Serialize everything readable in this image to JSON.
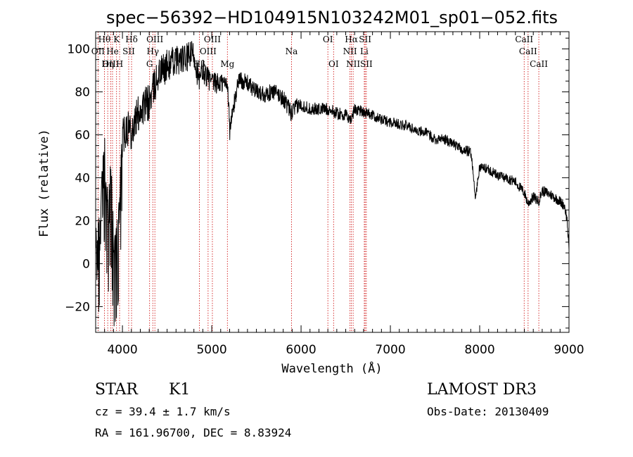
{
  "chart_data": {
    "type": "line",
    "title": "spec−56392−HD104915N103242M01_sp01−052.fits",
    "xlabel": "Wavelength (Å)",
    "ylabel": "Flux (relative)",
    "xlim": [
      3700,
      9000
    ],
    "ylim": [
      -32,
      108
    ],
    "x_ticks": [
      4000,
      5000,
      6000,
      7000,
      8000,
      9000
    ],
    "y_ticks": [
      -20,
      0,
      20,
      40,
      60,
      80,
      100
    ],
    "y_tick_labels": [
      "−20",
      "0",
      "20",
      "40",
      "60",
      "80",
      "100"
    ],
    "x_tick_labels": [
      "4000",
      "5000",
      "6000",
      "7000",
      "8000",
      "9000"
    ],
    "spectrum_anchors": {
      "x": [
        3720,
        3760,
        3800,
        3840,
        3870,
        3900,
        3935,
        3970,
        4000,
        4050,
        4100,
        4200,
        4300,
        4400,
        4500,
        4600,
        4700,
        4800,
        4860,
        4900,
        5000,
        5100,
        5180,
        5200,
        5300,
        5400,
        5500,
        5600,
        5700,
        5800,
        5890,
        5950,
        6000,
        6100,
        6200,
        6300,
        6400,
        6500,
        6560,
        6600,
        6700,
        6800,
        6900,
        7000,
        7100,
        7200,
        7300,
        7400,
        7500,
        7600,
        7700,
        7800,
        7900,
        7920,
        7950,
        8000,
        8100,
        8200,
        8300,
        8400,
        8500,
        8540,
        8600,
        8660,
        8700,
        8800,
        8900,
        8950,
        8980,
        9000
      ],
      "y": [
        5,
        25,
        48,
        20,
        40,
        5,
        10,
        25,
        60,
        65,
        62,
        72,
        75,
        88,
        92,
        95,
        95,
        98,
        84,
        90,
        84,
        84,
        84,
        62,
        86,
        84,
        80,
        79,
        80,
        77,
        70,
        73,
        74,
        72,
        72,
        72,
        70,
        69,
        67,
        72,
        71,
        69,
        67,
        66,
        65,
        64,
        62,
        61,
        58,
        58,
        56,
        53,
        52,
        46,
        30,
        45,
        44,
        41,
        40,
        38,
        33,
        28,
        31,
        29,
        34,
        32,
        29,
        27,
        20,
        5
      ],
      "noise_amplitude": [
        14,
        14,
        14,
        14,
        14,
        14,
        14,
        14,
        10,
        10,
        9,
        9,
        9,
        8,
        8,
        7,
        7,
        7,
        6,
        6,
        5,
        5,
        5,
        5,
        4,
        4,
        4,
        4,
        4,
        4,
        4,
        4,
        3,
        3,
        3,
        3,
        3,
        3,
        3,
        3,
        3,
        2.5,
        2.5,
        2.5,
        2.5,
        2.5,
        2.5,
        2.5,
        2.5,
        2.5,
        2.5,
        2.5,
        2.5,
        2.5,
        2.5,
        2.5,
        2.5,
        2.5,
        2.5,
        2.5,
        2.5,
        2.5,
        2.5,
        2.5,
        2.5,
        2.5,
        2.5,
        2.5,
        2.5,
        2.5
      ]
    },
    "spectral_lines": [
      {
        "label": "Hθ",
        "wavelength": 3798,
        "row": 0
      },
      {
        "label": "K",
        "wavelength": 3934,
        "row": 0
      },
      {
        "label": "Hδ",
        "wavelength": 4102,
        "row": 0
      },
      {
        "label": "OIII",
        "wavelength": 4363,
        "row": 0
      },
      {
        "label": "OIII",
        "wavelength": 5007,
        "row": 0
      },
      {
        "label": "OI",
        "wavelength": 6300,
        "row": 0
      },
      {
        "label": "Hα",
        "wavelength": 6563,
        "row": 0
      },
      {
        "label": "SII",
        "wavelength": 6717,
        "row": 0
      },
      {
        "label": "CaII",
        "wavelength": 8498,
        "row": 0
      },
      {
        "label": "OII",
        "wavelength": 3727,
        "row": 1
      },
      {
        "label": "He",
        "wavelength": 3889,
        "row": 1
      },
      {
        "label": "SII",
        "wavelength": 4070,
        "row": 1
      },
      {
        "label": "Hγ",
        "wavelength": 4340,
        "row": 1
      },
      {
        "label": "OIII",
        "wavelength": 4959,
        "row": 1
      },
      {
        "label": "NII",
        "wavelength": 6548,
        "row": 1
      },
      {
        "label": "Li",
        "wavelength": 6708,
        "row": 1
      },
      {
        "label": "CaII",
        "wavelength": 8542,
        "row": 1
      },
      {
        "label": "OIII",
        "wavelength": 3869,
        "row": 2
      },
      {
        "label": "Hη",
        "wavelength": 3835,
        "row": 2
      },
      {
        "label": "H",
        "wavelength": 3968,
        "row": 2
      },
      {
        "label": "G",
        "wavelength": 4304,
        "row": 2
      },
      {
        "label": "Hβ",
        "wavelength": 4861,
        "row": 2
      },
      {
        "label": "Mg",
        "wavelength": 5175,
        "row": 2
      },
      {
        "label": "Na",
        "wavelength": 5893,
        "row": 1
      },
      {
        "label": "OI",
        "wavelength": 6364,
        "row": 2
      },
      {
        "label": "NII",
        "wavelength": 6583,
        "row": 2
      },
      {
        "label": "SII",
        "wavelength": 6731,
        "row": 2
      },
      {
        "label": "CaII",
        "wavelength": 8662,
        "row": 2
      }
    ],
    "colors": {
      "spectrum": "#000000",
      "lines": "#cc0000",
      "axes": "#000000"
    }
  },
  "info": {
    "class": "STAR",
    "subclass": "K1",
    "survey": "LAMOST DR3",
    "cz": "cz = 39.4 ± 1.7 km/s",
    "obs_date": "Obs-Date: 20130409",
    "coords": "RA = 161.96700, DEC =    8.83924"
  }
}
